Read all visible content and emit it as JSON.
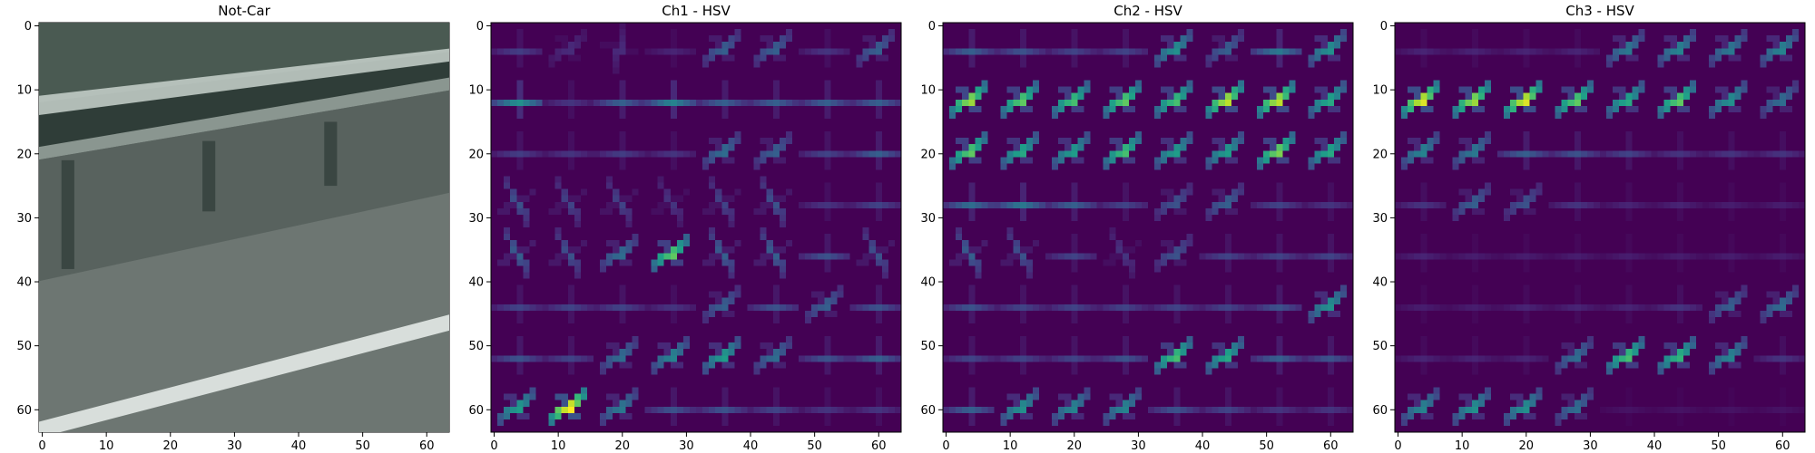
{
  "chart_data": [
    {
      "type": "image",
      "title": "Not-Car",
      "xticks": [
        0,
        10,
        20,
        30,
        40,
        50,
        60
      ],
      "yticks": [
        0,
        10,
        20,
        30,
        40,
        50,
        60
      ],
      "xlim": [
        -0.5,
        63.5
      ],
      "ylim": [
        63.5,
        -0.5
      ],
      "content": "grayscale road scene with guard rail and lane stripe",
      "colors": {
        "sky": "#4a5a52",
        "rail_light": "#c8d2cc",
        "rail_dark": "#2f3d38",
        "road": "#6d7672",
        "stripe": "#d8dedb"
      }
    },
    {
      "type": "heatmap",
      "title": "Ch1 - HSV",
      "xticks": [
        0,
        10,
        20,
        30,
        40,
        50,
        60
      ],
      "yticks": [
        0,
        10,
        20,
        30,
        40,
        50,
        60
      ],
      "xlim": [
        -0.5,
        63.5
      ],
      "ylim": [
        63.5,
        -0.5
      ],
      "colormap": "viridis",
      "grid": [
        8,
        8
      ],
      "cell_orientation": [
        [
          0,
          2,
          4,
          0,
          2,
          2,
          0,
          2
        ],
        [
          0,
          0,
          0,
          0,
          0,
          0,
          0,
          0
        ],
        [
          0,
          0,
          0,
          0,
          2,
          2,
          0,
          0
        ],
        [
          6,
          6,
          6,
          6,
          6,
          6,
          0,
          0
        ],
        [
          6,
          6,
          2,
          2,
          6,
          6,
          0,
          6
        ],
        [
          0,
          0,
          0,
          0,
          2,
          0,
          2,
          0
        ],
        [
          0,
          0,
          2,
          2,
          2,
          2,
          0,
          0
        ],
        [
          2,
          2,
          2,
          0,
          0,
          0,
          0,
          0
        ]
      ],
      "cell_strength": [
        [
          0.18,
          0.12,
          0.12,
          0.1,
          0.3,
          0.3,
          0.15,
          0.3
        ],
        [
          0.5,
          0.15,
          0.3,
          0.45,
          0.3,
          0.3,
          0.3,
          0.3
        ],
        [
          0.18,
          0.15,
          0.18,
          0.15,
          0.35,
          0.3,
          0.2,
          0.3
        ],
        [
          0.25,
          0.2,
          0.2,
          0.15,
          0.2,
          0.25,
          0.15,
          0.2
        ],
        [
          0.3,
          0.25,
          0.35,
          0.75,
          0.3,
          0.3,
          0.25,
          0.25
        ],
        [
          0.2,
          0.2,
          0.2,
          0.15,
          0.3,
          0.25,
          0.3,
          0.25
        ],
        [
          0.25,
          0.2,
          0.35,
          0.45,
          0.55,
          0.35,
          0.25,
          0.3
        ],
        [
          0.55,
          1.0,
          0.4,
          0.25,
          0.25,
          0.2,
          0.15,
          0.15
        ]
      ]
    },
    {
      "type": "heatmap",
      "title": "Ch2 - HSV",
      "xticks": [
        0,
        10,
        20,
        30,
        40,
        50,
        60
      ],
      "yticks": [
        0,
        10,
        20,
        30,
        40,
        50,
        60
      ],
      "xlim": [
        -0.5,
        63.5
      ],
      "ylim": [
        63.5,
        -0.5
      ],
      "colormap": "viridis",
      "grid": [
        8,
        8
      ],
      "cell_orientation": [
        [
          0,
          0,
          0,
          0,
          2,
          2,
          0,
          2
        ],
        [
          2,
          2,
          2,
          2,
          2,
          2,
          2,
          2
        ],
        [
          2,
          2,
          2,
          2,
          2,
          2,
          2,
          2
        ],
        [
          0,
          0,
          0,
          0,
          2,
          2,
          0,
          0
        ],
        [
          6,
          6,
          0,
          6,
          2,
          0,
          0,
          0
        ],
        [
          0,
          0,
          0,
          0,
          0,
          0,
          0,
          2
        ],
        [
          0,
          0,
          0,
          0,
          2,
          2,
          0,
          0
        ],
        [
          0,
          2,
          2,
          2,
          0,
          0,
          0,
          0
        ]
      ],
      "cell_strength": [
        [
          0.3,
          0.25,
          0.2,
          0.2,
          0.5,
          0.3,
          0.4,
          0.5
        ],
        [
          0.85,
          0.75,
          0.7,
          0.75,
          0.7,
          0.9,
          0.9,
          0.6
        ],
        [
          0.75,
          0.6,
          0.55,
          0.7,
          0.55,
          0.55,
          0.8,
          0.6
        ],
        [
          0.35,
          0.4,
          0.3,
          0.2,
          0.25,
          0.3,
          0.2,
          0.15
        ],
        [
          0.3,
          0.25,
          0.2,
          0.15,
          0.25,
          0.2,
          0.2,
          0.2
        ],
        [
          0.25,
          0.2,
          0.2,
          0.2,
          0.2,
          0.2,
          0.25,
          0.5
        ],
        [
          0.2,
          0.2,
          0.2,
          0.25,
          0.7,
          0.6,
          0.3,
          0.25
        ],
        [
          0.3,
          0.5,
          0.45,
          0.45,
          0.25,
          0.2,
          0.15,
          0.15
        ]
      ]
    },
    {
      "type": "heatmap",
      "title": "Ch3 - HSV",
      "xticks": [
        0,
        10,
        20,
        30,
        40,
        50,
        60
      ],
      "yticks": [
        0,
        10,
        20,
        30,
        40,
        50,
        60
      ],
      "xlim": [
        -0.5,
        63.5
      ],
      "ylim": [
        63.5,
        -0.5
      ],
      "colormap": "viridis",
      "grid": [
        8,
        8
      ],
      "cell_orientation": [
        [
          0,
          0,
          0,
          0,
          2,
          2,
          2,
          2
        ],
        [
          2,
          2,
          2,
          2,
          2,
          2,
          2,
          2
        ],
        [
          2,
          2,
          0,
          0,
          0,
          0,
          0,
          0
        ],
        [
          0,
          2,
          2,
          0,
          0,
          0,
          0,
          0
        ],
        [
          0,
          0,
          0,
          0,
          0,
          0,
          0,
          0
        ],
        [
          0,
          0,
          0,
          0,
          0,
          0,
          2,
          2
        ],
        [
          0,
          0,
          0,
          2,
          2,
          2,
          2,
          0
        ],
        [
          2,
          2,
          2,
          2,
          0,
          0,
          0,
          0
        ]
      ],
      "cell_strength": [
        [
          0.1,
          0.1,
          0.1,
          0.1,
          0.4,
          0.45,
          0.4,
          0.45
        ],
        [
          0.95,
          0.85,
          0.95,
          0.75,
          0.6,
          0.75,
          0.5,
          0.35
        ],
        [
          0.45,
          0.4,
          0.3,
          0.25,
          0.2,
          0.15,
          0.15,
          0.15
        ],
        [
          0.15,
          0.3,
          0.25,
          0.15,
          0.1,
          0.1,
          0.08,
          0.08
        ],
        [
          0.1,
          0.08,
          0.08,
          0.08,
          0.08,
          0.08,
          0.08,
          0.08
        ],
        [
          0.08,
          0.08,
          0.1,
          0.1,
          0.1,
          0.15,
          0.3,
          0.35
        ],
        [
          0.1,
          0.1,
          0.1,
          0.35,
          0.7,
          0.65,
          0.45,
          0.15
        ],
        [
          0.45,
          0.5,
          0.5,
          0.35,
          0.05,
          0.05,
          0.05,
          0.05
        ]
      ]
    }
  ]
}
